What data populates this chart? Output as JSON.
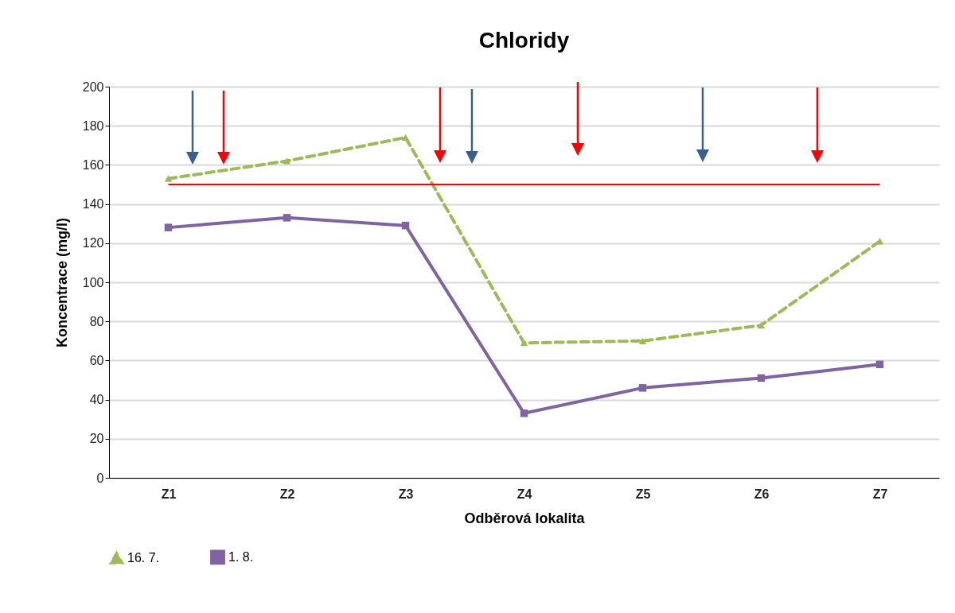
{
  "chart_data": {
    "type": "line",
    "title": "Chloridy",
    "xlabel": "Odběrová lokalita",
    "ylabel": "Koncentrace (mg/l)",
    "categories": [
      "Z1",
      "Z2",
      "Z3",
      "Z4",
      "Z5",
      "Z6",
      "Z7"
    ],
    "series": [
      {
        "name": "16. 7.",
        "color": "#9bbb59",
        "marker": "triangle",
        "line_style": "dashed",
        "values": [
          153,
          162,
          174,
          69,
          70,
          78,
          121
        ]
      },
      {
        "name": "1. 8.",
        "color": "#8064a2",
        "marker": "square",
        "line_style": "solid",
        "values": [
          128,
          133,
          129,
          33,
          46,
          51,
          58
        ]
      }
    ],
    "ylim": [
      0,
      200
    ],
    "yticks": [
      0,
      20,
      40,
      60,
      80,
      100,
      120,
      140,
      160,
      180,
      200
    ],
    "grid": "y",
    "legend": "bottom",
    "ref_lines": [
      {
        "axis": "y",
        "value": 150,
        "color": "#ff0000"
      }
    ]
  }
}
